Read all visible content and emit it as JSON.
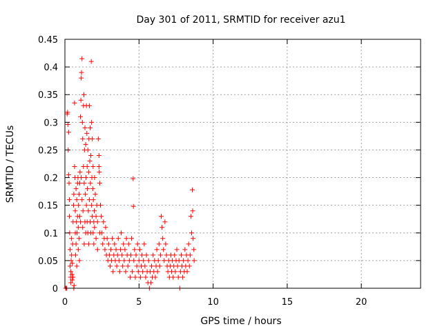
{
  "chart_data": {
    "type": "scatter",
    "title": "Day 301 of 2011, SRMTID for receiver azu1",
    "xlabel": "GPS time / hours",
    "ylabel": "SRMTID / TECUs",
    "xlim": [
      0,
      24
    ],
    "ylim": [
      0,
      0.45
    ],
    "xticks": [
      0,
      5,
      10,
      15,
      20
    ],
    "yticks": [
      0,
      0.05,
      0.1,
      0.15,
      0.2,
      0.25,
      0.3,
      0.35,
      0.4,
      0.45
    ],
    "xtick_labels": [
      "0",
      "5",
      "10",
      "15",
      "20"
    ],
    "ytick_labels": [
      "0",
      "0.05",
      "0.1",
      "0.15",
      "0.2",
      "0.25",
      "0.3",
      "0.35",
      "0.4",
      "0.45"
    ],
    "grid": true,
    "marker": "+",
    "color": "#ff0000",
    "series": [
      {
        "name": "azu1",
        "points": [
          [
            0.05,
            0.0
          ],
          [
            0.1,
            0.0
          ],
          [
            0.12,
            0.0
          ],
          [
            0.15,
            0.315
          ],
          [
            0.18,
            0.318
          ],
          [
            0.2,
            0.296
          ],
          [
            0.22,
            0.25
          ],
          [
            0.25,
            0.205
          ],
          [
            0.25,
            0.282
          ],
          [
            0.28,
            0.19
          ],
          [
            0.3,
            0.16
          ],
          [
            0.3,
            0.13
          ],
          [
            0.32,
            0.1
          ],
          [
            0.35,
            0.07
          ],
          [
            0.35,
            0.04
          ],
          [
            0.38,
            0.02
          ],
          [
            0.4,
            0.01
          ],
          [
            0.4,
            0.03
          ],
          [
            0.42,
            0.05
          ],
          [
            0.45,
            0.09
          ],
          [
            0.45,
            0.06
          ],
          [
            0.48,
            0.025
          ],
          [
            0.5,
            0.015
          ],
          [
            0.5,
            0.045
          ],
          [
            0.52,
            0.08
          ],
          [
            0.55,
            0.12
          ],
          [
            0.55,
            0.02
          ],
          [
            0.58,
            0.15
          ],
          [
            0.6,
            0.17
          ],
          [
            0.6,
            0.0
          ],
          [
            0.62,
            0.005
          ],
          [
            0.65,
            0.335
          ],
          [
            0.65,
            0.22
          ],
          [
            0.68,
            0.2
          ],
          [
            0.7,
            0.14
          ],
          [
            0.7,
            0.1
          ],
          [
            0.72,
            0.06
          ],
          [
            0.75,
            0.18
          ],
          [
            0.75,
            0.08
          ],
          [
            0.78,
            0.12
          ],
          [
            0.8,
            0.16
          ],
          [
            0.8,
            0.04
          ],
          [
            0.82,
            0.1
          ],
          [
            0.85,
            0.19
          ],
          [
            0.85,
            0.13
          ],
          [
            0.88,
            0.2
          ],
          [
            0.9,
            0.07
          ],
          [
            0.9,
            0.11
          ],
          [
            0.92,
            0.15
          ],
          [
            0.95,
            0.09
          ],
          [
            0.95,
            0.17
          ],
          [
            0.98,
            0.05
          ],
          [
            1.0,
            0.13
          ],
          [
            1.0,
            0.19
          ],
          [
            1.02,
            0.21
          ],
          [
            1.05,
            0.12
          ],
          [
            1.05,
            0.31
          ],
          [
            1.08,
            0.34
          ],
          [
            1.1,
            0.38
          ],
          [
            1.1,
            0.2
          ],
          [
            1.12,
            0.39
          ],
          [
            1.15,
            0.415
          ],
          [
            1.15,
            0.16
          ],
          [
            1.18,
            0.3
          ],
          [
            1.2,
            0.27
          ],
          [
            1.2,
            0.11
          ],
          [
            1.22,
            0.14
          ],
          [
            1.25,
            0.22
          ],
          [
            1.25,
            0.33
          ],
          [
            1.28,
            0.35
          ],
          [
            1.3,
            0.19
          ],
          [
            1.3,
            0.08
          ],
          [
            1.32,
            0.25
          ],
          [
            1.35,
            0.29
          ],
          [
            1.35,
            0.12
          ],
          [
            1.38,
            0.17
          ],
          [
            1.4,
            0.26
          ],
          [
            1.4,
            0.1
          ],
          [
            1.42,
            0.2
          ],
          [
            1.45,
            0.33
          ],
          [
            1.45,
            0.15
          ],
          [
            1.48,
            0.28
          ],
          [
            1.5,
            0.22
          ],
          [
            1.5,
            0.12
          ],
          [
            1.52,
            0.18
          ],
          [
            1.55,
            0.25
          ],
          [
            1.55,
            0.1
          ],
          [
            1.58,
            0.14
          ],
          [
            1.6,
            0.21
          ],
          [
            1.6,
            0.08
          ],
          [
            1.62,
            0.27
          ],
          [
            1.65,
            0.33
          ],
          [
            1.65,
            0.16
          ],
          [
            1.68,
            0.23
          ],
          [
            1.7,
            0.29
          ],
          [
            1.7,
            0.12
          ],
          [
            1.72,
            0.19
          ],
          [
            1.75,
            0.24
          ],
          [
            1.75,
            0.1
          ],
          [
            1.78,
            0.41
          ],
          [
            1.8,
            0.3
          ],
          [
            1.8,
            0.15
          ],
          [
            1.82,
            0.2
          ],
          [
            1.85,
            0.27
          ],
          [
            1.85,
            0.13
          ],
          [
            1.88,
            0.18
          ],
          [
            1.9,
            0.22
          ],
          [
            1.9,
            0.1
          ],
          [
            1.92,
            0.16
          ],
          [
            1.95,
            0.12
          ],
          [
            1.95,
            0.08
          ],
          [
            1.98,
            0.14
          ],
          [
            2.0,
            0.2
          ],
          [
            2.0,
            0.11
          ],
          [
            2.05,
            0.17
          ],
          [
            2.1,
            0.13
          ],
          [
            2.1,
            0.09
          ],
          [
            2.15,
            0.15
          ],
          [
            2.2,
            0.12
          ],
          [
            2.2,
            0.07
          ],
          [
            2.25,
            0.27
          ],
          [
            2.3,
            0.24
          ],
          [
            2.3,
            0.22
          ],
          [
            2.32,
            0.21
          ],
          [
            2.35,
            0.19
          ],
          [
            2.35,
            0.1
          ],
          [
            2.4,
            0.15
          ],
          [
            2.45,
            0.13
          ],
          [
            2.5,
            0.1
          ],
          [
            2.55,
            0.08
          ],
          [
            2.6,
            0.12
          ],
          [
            2.65,
            0.09
          ],
          [
            2.7,
            0.07
          ],
          [
            2.75,
            0.11
          ],
          [
            2.8,
            0.06
          ],
          [
            2.85,
            0.09
          ],
          [
            2.9,
            0.05
          ],
          [
            2.95,
            0.08
          ],
          [
            3.0,
            0.06
          ],
          [
            3.05,
            0.04
          ],
          [
            3.1,
            0.07
          ],
          [
            3.15,
            0.05
          ],
          [
            3.2,
            0.09
          ],
          [
            3.25,
            0.03
          ],
          [
            3.3,
            0.06
          ],
          [
            3.35,
            0.08
          ],
          [
            3.4,
            0.05
          ],
          [
            3.45,
            0.07
          ],
          [
            3.5,
            0.04
          ],
          [
            3.55,
            0.06
          ],
          [
            3.6,
            0.09
          ],
          [
            3.65,
            0.05
          ],
          [
            3.7,
            0.03
          ],
          [
            3.75,
            0.07
          ],
          [
            3.8,
            0.1
          ],
          [
            3.85,
            0.06
          ],
          [
            3.9,
            0.04
          ],
          [
            3.95,
            0.08
          ],
          [
            4.0,
            0.05
          ],
          [
            4.05,
            0.07
          ],
          [
            4.1,
            0.03
          ],
          [
            4.15,
            0.09
          ],
          [
            4.2,
            0.06
          ],
          [
            4.25,
            0.04
          ],
          [
            4.3,
            0.08
          ],
          [
            4.35,
            0.05
          ],
          [
            4.4,
            0.02
          ],
          [
            4.45,
            0.06
          ],
          [
            4.5,
            0.09
          ],
          [
            4.55,
            0.03
          ],
          [
            4.6,
            0.198
          ],
          [
            4.62,
            0.148
          ],
          [
            4.65,
            0.05
          ],
          [
            4.7,
            0.07
          ],
          [
            4.75,
            0.02
          ],
          [
            4.8,
            0.06
          ],
          [
            4.85,
            0.04
          ],
          [
            4.9,
            0.08
          ],
          [
            4.95,
            0.03
          ],
          [
            5.0,
            0.05
          ],
          [
            5.05,
            0.07
          ],
          [
            5.1,
            0.02
          ],
          [
            5.15,
            0.04
          ],
          [
            5.2,
            0.06
          ],
          [
            5.25,
            0.03
          ],
          [
            5.3,
            0.05
          ],
          [
            5.35,
            0.08
          ],
          [
            5.4,
            0.04
          ],
          [
            5.45,
            0.02
          ],
          [
            5.5,
            0.06
          ],
          [
            5.55,
            0.03
          ],
          [
            5.6,
            0.01
          ],
          [
            5.65,
            0.05
          ],
          [
            5.7,
            0.0
          ],
          [
            5.75,
            0.03
          ],
          [
            5.8,
            0.01
          ],
          [
            5.85,
            0.04
          ],
          [
            5.9,
            0.02
          ],
          [
            5.95,
            0.06
          ],
          [
            6.0,
            0.03
          ],
          [
            6.05,
            0.05
          ],
          [
            6.1,
            0.02
          ],
          [
            6.15,
            0.04
          ],
          [
            6.2,
            0.07
          ],
          [
            6.25,
            0.03
          ],
          [
            6.3,
            0.05
          ],
          [
            6.35,
            0.08
          ],
          [
            6.4,
            0.04
          ],
          [
            6.45,
            0.06
          ],
          [
            6.5,
            0.13
          ],
          [
            6.55,
            0.11
          ],
          [
            6.6,
            0.09
          ],
          [
            6.65,
            0.07
          ],
          [
            6.7,
            0.05
          ],
          [
            6.75,
            0.12
          ],
          [
            6.8,
            0.08
          ],
          [
            6.85,
            0.06
          ],
          [
            6.9,
            0.04
          ],
          [
            6.95,
            0.03
          ],
          [
            7.0,
            0.05
          ],
          [
            7.05,
            0.02
          ],
          [
            7.1,
            0.04
          ],
          [
            7.15,
            0.06
          ],
          [
            7.2,
            0.03
          ],
          [
            7.25,
            0.05
          ],
          [
            7.3,
            0.02
          ],
          [
            7.35,
            0.04
          ],
          [
            7.4,
            0.06
          ],
          [
            7.45,
            0.03
          ],
          [
            7.5,
            0.05
          ],
          [
            7.55,
            0.07
          ],
          [
            7.6,
            0.04
          ],
          [
            7.65,
            0.02
          ],
          [
            7.7,
            0.05
          ],
          [
            7.75,
            0.0
          ],
          [
            7.8,
            0.03
          ],
          [
            7.85,
            0.06
          ],
          [
            7.9,
            0.04
          ],
          [
            7.95,
            0.02
          ],
          [
            8.0,
            0.05
          ],
          [
            8.05,
            0.03
          ],
          [
            8.1,
            0.07
          ],
          [
            8.15,
            0.04
          ],
          [
            8.2,
            0.06
          ],
          [
            8.25,
            0.03
          ],
          [
            8.3,
            0.05
          ],
          [
            8.35,
            0.08
          ],
          [
            8.4,
            0.04
          ],
          [
            8.45,
            0.06
          ],
          [
            8.5,
            0.13
          ],
          [
            8.55,
            0.1
          ],
          [
            8.6,
            0.178
          ],
          [
            8.62,
            0.14
          ],
          [
            8.65,
            0.09
          ],
          [
            8.7,
            0.07
          ],
          [
            8.72,
            0.05
          ]
        ]
      }
    ]
  }
}
